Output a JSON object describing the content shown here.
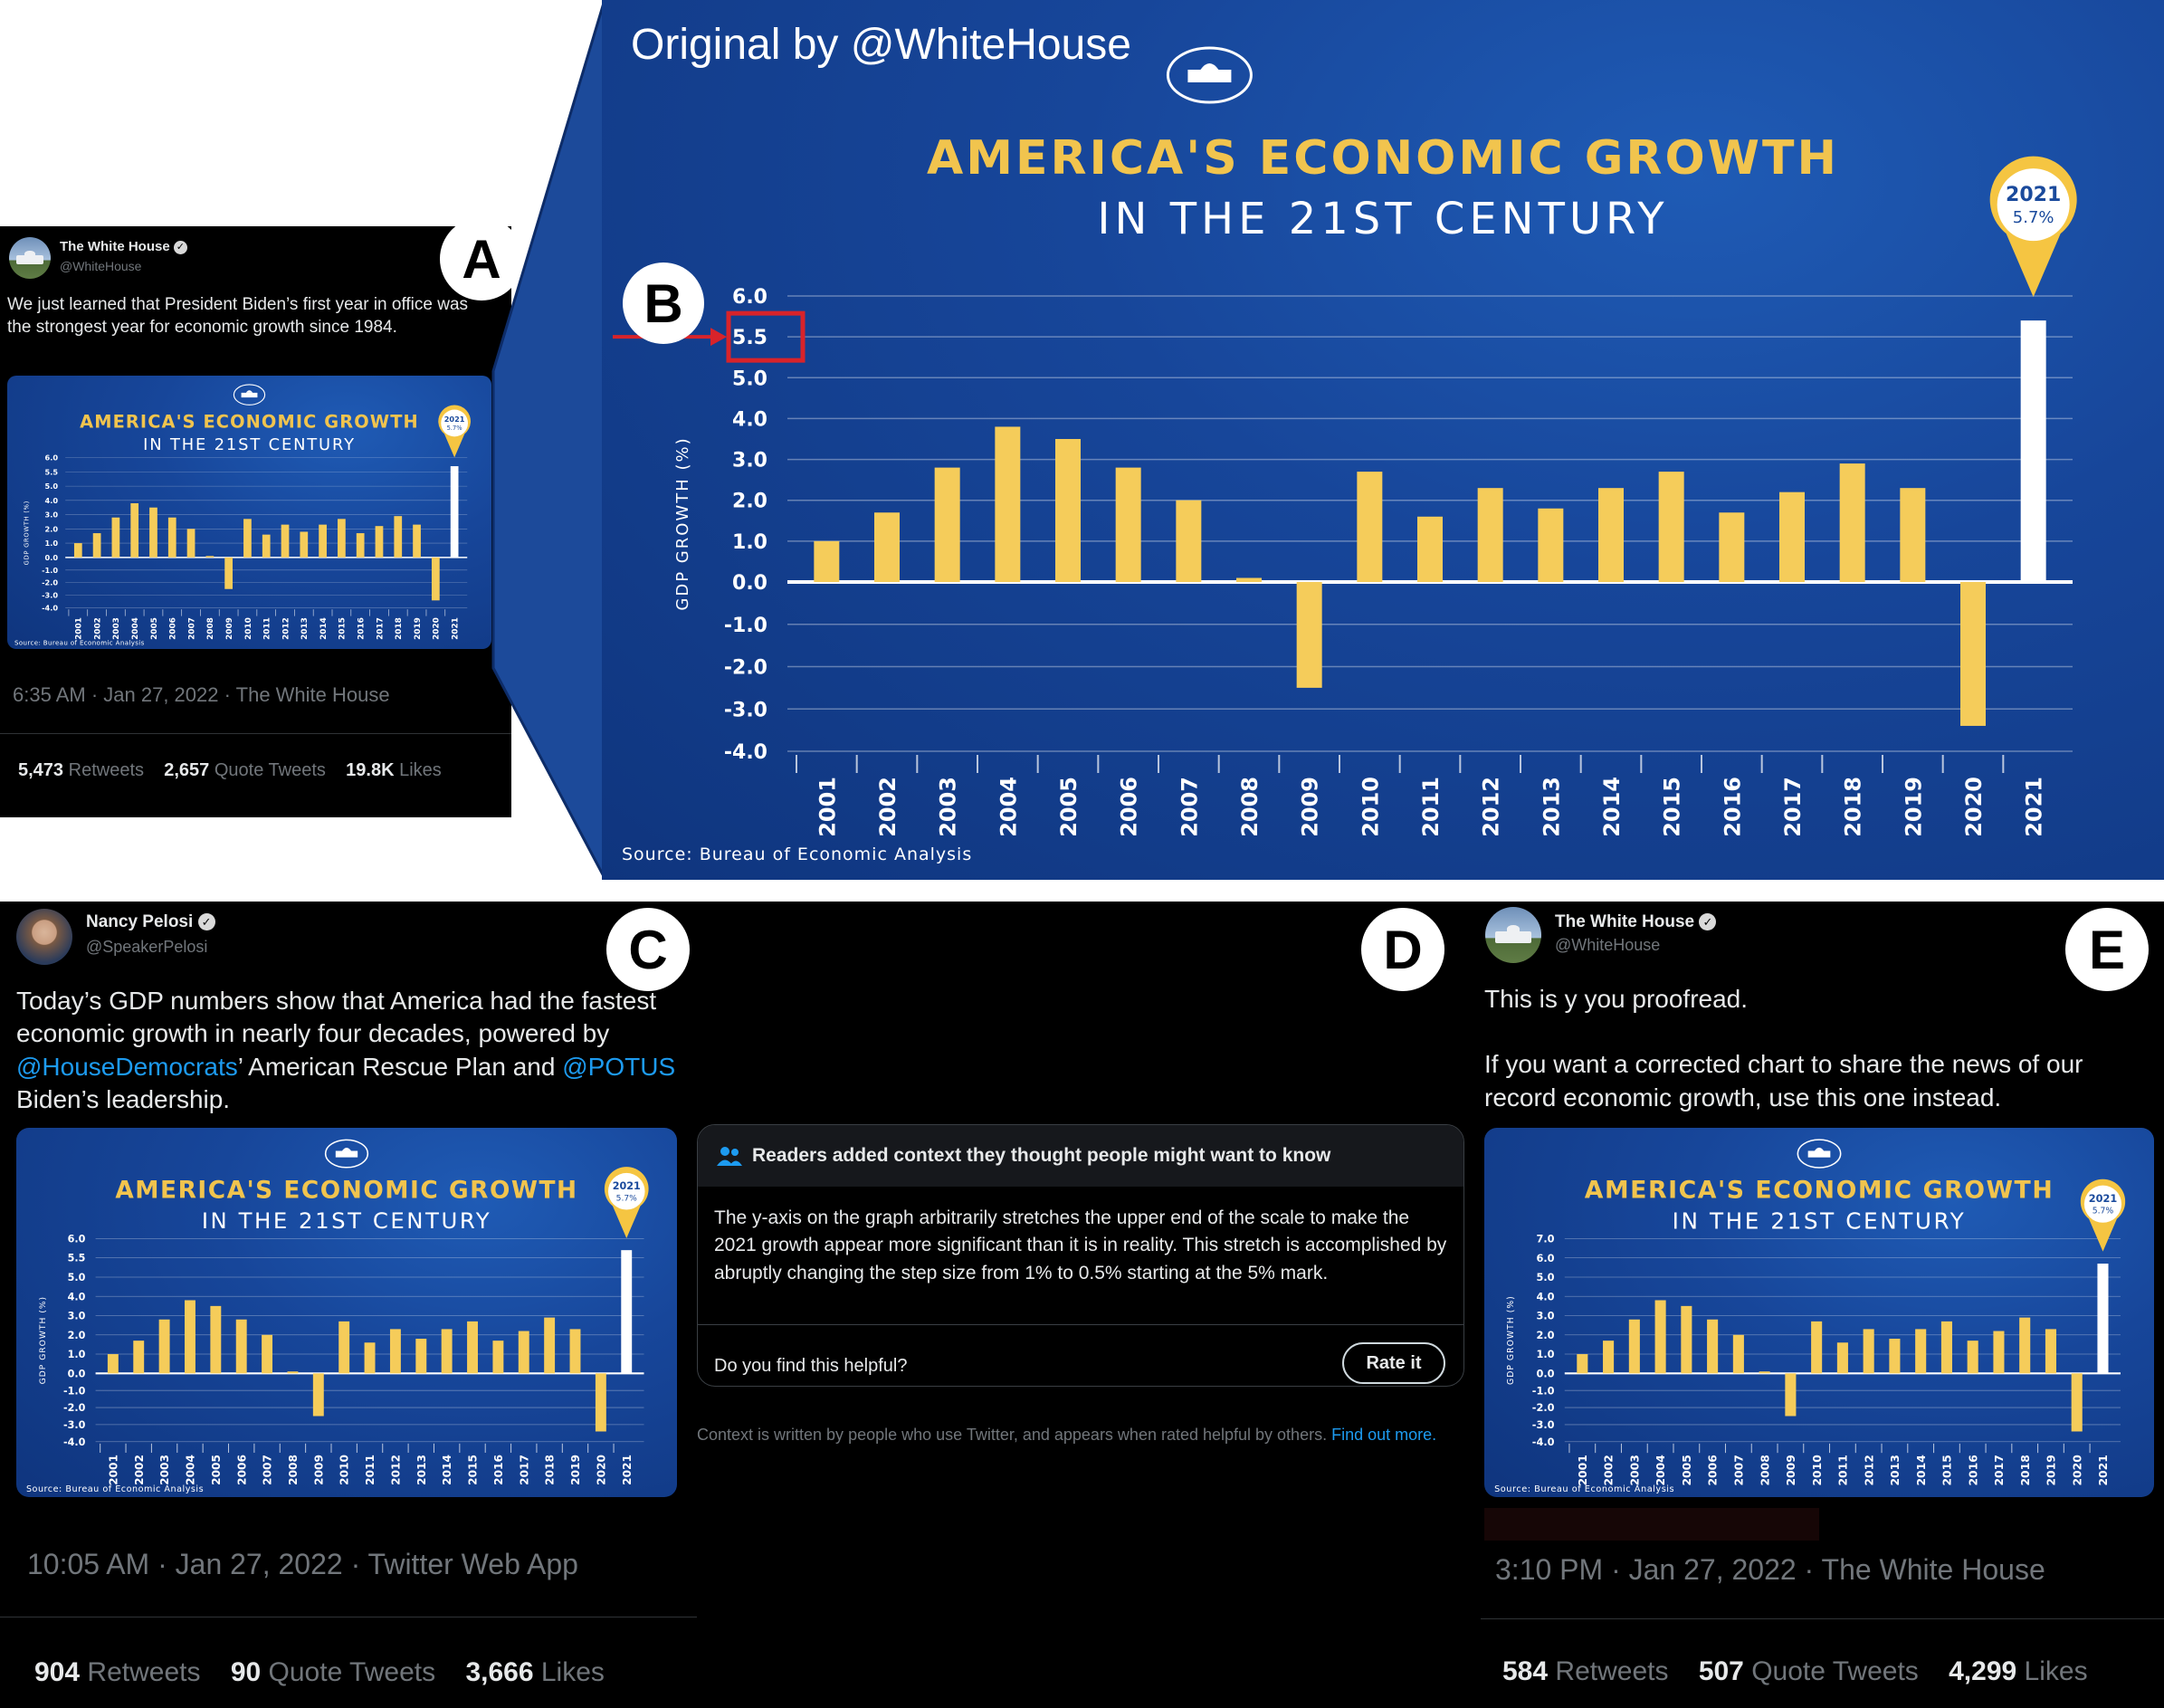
{
  "labels": {
    "a": "A",
    "b": "B",
    "c": "C",
    "d": "D",
    "e": "E"
  },
  "main_chart": {
    "caption": "Original by @WhiteHouse",
    "source": "Source: Bureau of Economic Analysis",
    "highlighted_tick": "5.5",
    "colors": {
      "bar": "#f5cc5a",
      "highlight_bar": "#ffffff",
      "background": "#1a4a9c",
      "title": "#f1c44e",
      "subtitle": "#ffffff",
      "annotation": "#d8232a"
    }
  },
  "chart_data": {
    "type": "bar",
    "title": "AMERICA'S ECONOMIC GROWTH",
    "subtitle": "IN THE 21ST CENTURY",
    "ylabel": "GDP GROWTH (%)",
    "xlabel": "",
    "categories": [
      "2001",
      "2002",
      "2003",
      "2004",
      "2005",
      "2006",
      "2007",
      "2008",
      "2009",
      "2010",
      "2011",
      "2012",
      "2013",
      "2014",
      "2015",
      "2016",
      "2017",
      "2018",
      "2019",
      "2020",
      "2021"
    ],
    "values": [
      1.0,
      1.7,
      2.8,
      3.8,
      3.5,
      2.8,
      2.0,
      0.1,
      -2.5,
      2.7,
      1.6,
      2.3,
      1.8,
      2.3,
      2.7,
      1.7,
      2.2,
      2.9,
      2.3,
      -3.4,
      5.7
    ],
    "yticks": [
      "6.0",
      "5.5",
      "5.0",
      "4.0",
      "3.0",
      "2.0",
      "1.0",
      "0.0",
      "-1.0",
      "-2.0",
      "-3.0",
      "-4.0"
    ],
    "corrected_yticks": [
      "7.0",
      "6.0",
      "5.0",
      "4.0",
      "3.0",
      "2.0",
      "1.0",
      "0.0",
      "-1.0",
      "-2.0",
      "-3.0",
      "-4.0"
    ],
    "ylim": [
      -4.0,
      6.0
    ],
    "highlight": {
      "category": "2021",
      "year_label": "2021",
      "value_label": "5.7%"
    },
    "source": "Source: Bureau of Economic Analysis",
    "grid": true
  },
  "tweet_a": {
    "name": "The White House",
    "handle": "@WhiteHouse",
    "text": "We just learned that President Biden’s first year in office was the strongest year for economic growth since 1984.",
    "timestamp": "6:35 AM · Jan 27, 2022 · The White House",
    "retweets": "5,473",
    "retweets_label": "Retweets",
    "quotes": "2,657",
    "quotes_label": "Quote Tweets",
    "likes": "19.8K",
    "likes_label": "Likes"
  },
  "tweet_c": {
    "name": "Nancy Pelosi",
    "handle": "@SpeakerPelosi",
    "text_1": "Today’s GDP numbers show that America had the fastest economic growth in nearly four decades, powered by ",
    "mention_1": "@HouseDemocrats",
    "text_2": "’ American Rescue Plan and ",
    "mention_2": "@POTUS",
    "text_3": " Biden’s leadership.",
    "timestamp": "10:05 AM · Jan 27, 2022 · Twitter Web App",
    "retweets": "904",
    "retweets_label": "Retweets",
    "quotes": "90",
    "quotes_label": "Quote Tweets",
    "likes": "3,666",
    "likes_label": "Likes"
  },
  "note_d": {
    "header": "Readers added context they thought people might want to know",
    "body": "The y-axis on the graph arbitrarily stretches the upper end of the scale to make the 2021 growth appear more significant than it is in reality. This stretch is accomplished by abruptly changing the step size from 1% to 0.5% starting at the 5% mark.",
    "question": "Do you find this helpful?",
    "rate_button": "Rate it",
    "footer": "Context is written by people who use Twitter, and appears when rated helpful by others.",
    "footer_link": "Find out more."
  },
  "tweet_e": {
    "name": "The White House",
    "handle": "@WhiteHouse",
    "text_1": "This is y you proofread.",
    "text_2": "If you want a corrected chart to share the news of our record economic growth, use this one instead.",
    "timestamp": "3:10 PM · Jan 27, 2022 · The White House",
    "retweets": "584",
    "retweets_label": "Retweets",
    "quotes": "507",
    "quotes_label": "Quote Tweets",
    "likes": "4,299",
    "likes_label": "Likes"
  }
}
